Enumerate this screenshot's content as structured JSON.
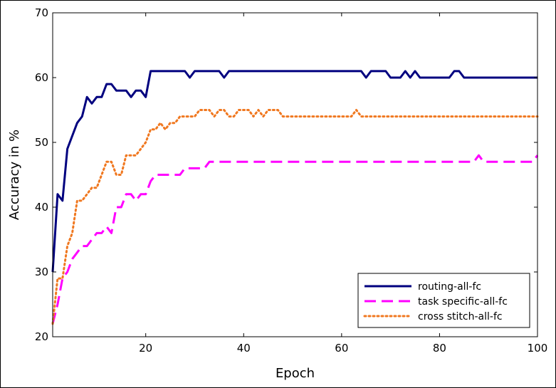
{
  "chart_data": {
    "type": "line",
    "xlabel": "Epoch",
    "ylabel": "Accuracy in %",
    "xlim": [
      1,
      100
    ],
    "ylim": [
      20,
      70
    ],
    "x_ticks": [
      20,
      40,
      60,
      80,
      100
    ],
    "y_ticks": [
      20,
      30,
      40,
      50,
      60,
      70
    ],
    "grid": false,
    "legend_position": "bottom-right",
    "series": [
      {
        "name": "routing-all-fc",
        "color": "#00007f",
        "style": "solid",
        "x": [
          1,
          2,
          3,
          4,
          5,
          6,
          7,
          8,
          9,
          10,
          11,
          12,
          13,
          14,
          15,
          16,
          17,
          18,
          19,
          20,
          21,
          22,
          28,
          29,
          30,
          35,
          36,
          37,
          64,
          65,
          66,
          69,
          70,
          72,
          73,
          74,
          75,
          76,
          82,
          83,
          84,
          85,
          100
        ],
        "values": [
          30,
          42,
          41,
          49,
          51,
          53,
          54,
          57,
          56,
          57,
          57,
          59,
          59,
          58,
          58,
          58,
          57,
          58,
          58,
          57,
          61,
          61,
          61,
          60,
          61,
          61,
          60,
          61,
          61,
          60,
          61,
          61,
          60,
          60,
          61,
          60,
          61,
          60,
          60,
          61,
          61,
          60,
          60
        ]
      },
      {
        "name": "task specific-all-fc",
        "color": "#ff00ff",
        "style": "dashed",
        "x": [
          1,
          2,
          3,
          4,
          5,
          6,
          7,
          8,
          9,
          10,
          11,
          12,
          13,
          14,
          15,
          16,
          17,
          18,
          19,
          20,
          21,
          22,
          27,
          28,
          30,
          31,
          32,
          33,
          87,
          88,
          89,
          99,
          100
        ],
        "values": [
          22,
          25,
          29,
          30,
          32,
          33,
          34,
          34,
          35,
          36,
          36,
          37,
          36,
          40,
          40,
          42,
          42,
          41,
          42,
          42,
          44,
          45,
          45,
          46,
          46,
          46,
          46,
          47,
          47,
          48,
          47,
          47,
          48
        ]
      },
      {
        "name": "cross stitch-all-fc",
        "color": "#f07820",
        "style": "dotted",
        "x": [
          1,
          2,
          3,
          4,
          5,
          6,
          7,
          8,
          9,
          10,
          11,
          12,
          13,
          14,
          15,
          16,
          17,
          18,
          19,
          20,
          21,
          22,
          23,
          24,
          25,
          26,
          27,
          28,
          30,
          31,
          32,
          33,
          34,
          35,
          36,
          37,
          38,
          39,
          40,
          41,
          42,
          43,
          44,
          45,
          46,
          47,
          48,
          62,
          63,
          64,
          100
        ],
        "values": [
          22,
          29,
          29,
          34,
          36,
          41,
          41,
          42,
          43,
          43,
          45,
          47,
          47,
          45,
          45,
          48,
          48,
          48,
          49,
          50,
          52,
          52,
          53,
          52,
          53,
          53,
          54,
          54,
          54,
          55,
          55,
          55,
          54,
          55,
          55,
          54,
          54,
          55,
          55,
          55,
          54,
          55,
          54,
          55,
          55,
          55,
          54,
          54,
          55,
          54,
          54
        ]
      }
    ]
  }
}
